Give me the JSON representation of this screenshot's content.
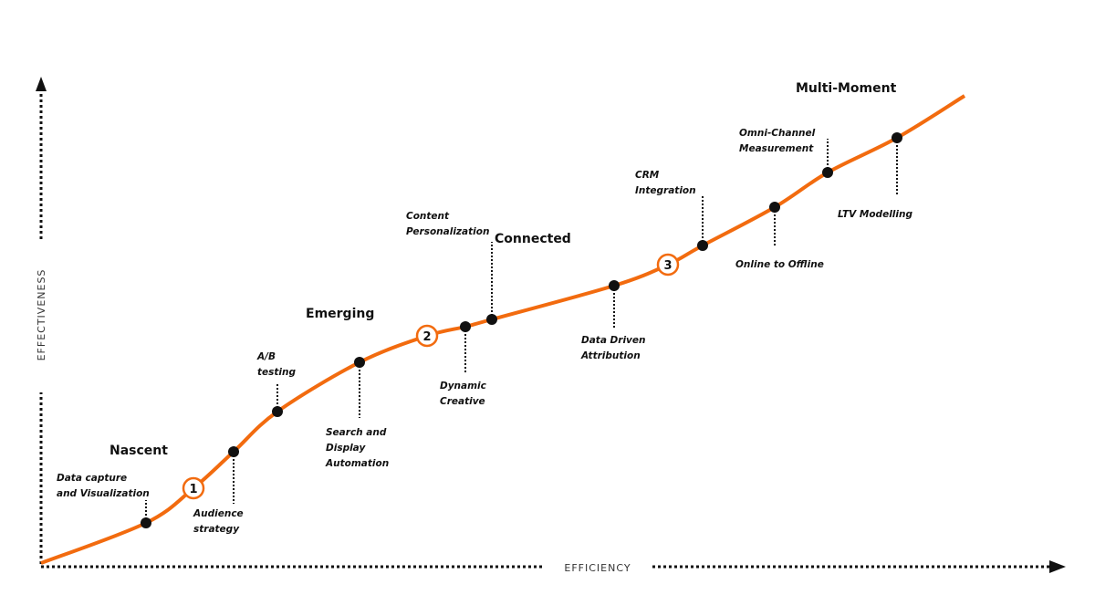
{
  "axes": {
    "y_label": "EFFECTIVENESS",
    "x_label": "EFFICIENCY"
  },
  "stages": [
    "Nascent",
    "Emerging",
    "Connected",
    "Multi-Moment"
  ],
  "steps": [
    "1",
    "2",
    "3"
  ],
  "milestones": [
    {
      "label": [
        "Data capture",
        "and  Visualization"
      ]
    },
    {
      "label": [
        "Audience",
        "strategy"
      ]
    },
    {
      "label": [
        "A/B",
        "testing"
      ]
    },
    {
      "label": [
        "Search and",
        "Display",
        "Automation"
      ]
    },
    {
      "label": [
        "Dynamic",
        "Creative"
      ]
    },
    {
      "label": [
        "Content",
        "Personalization"
      ]
    },
    {
      "label": [
        "Data Driven",
        "Attribution"
      ]
    },
    {
      "label": [
        "CRM",
        "Integration"
      ]
    },
    {
      "label": [
        "Online to  Offline"
      ]
    },
    {
      "label": [
        "Omni-Channel",
        "Measurement"
      ]
    },
    {
      "label": [
        "LTV Modelling"
      ]
    }
  ]
}
